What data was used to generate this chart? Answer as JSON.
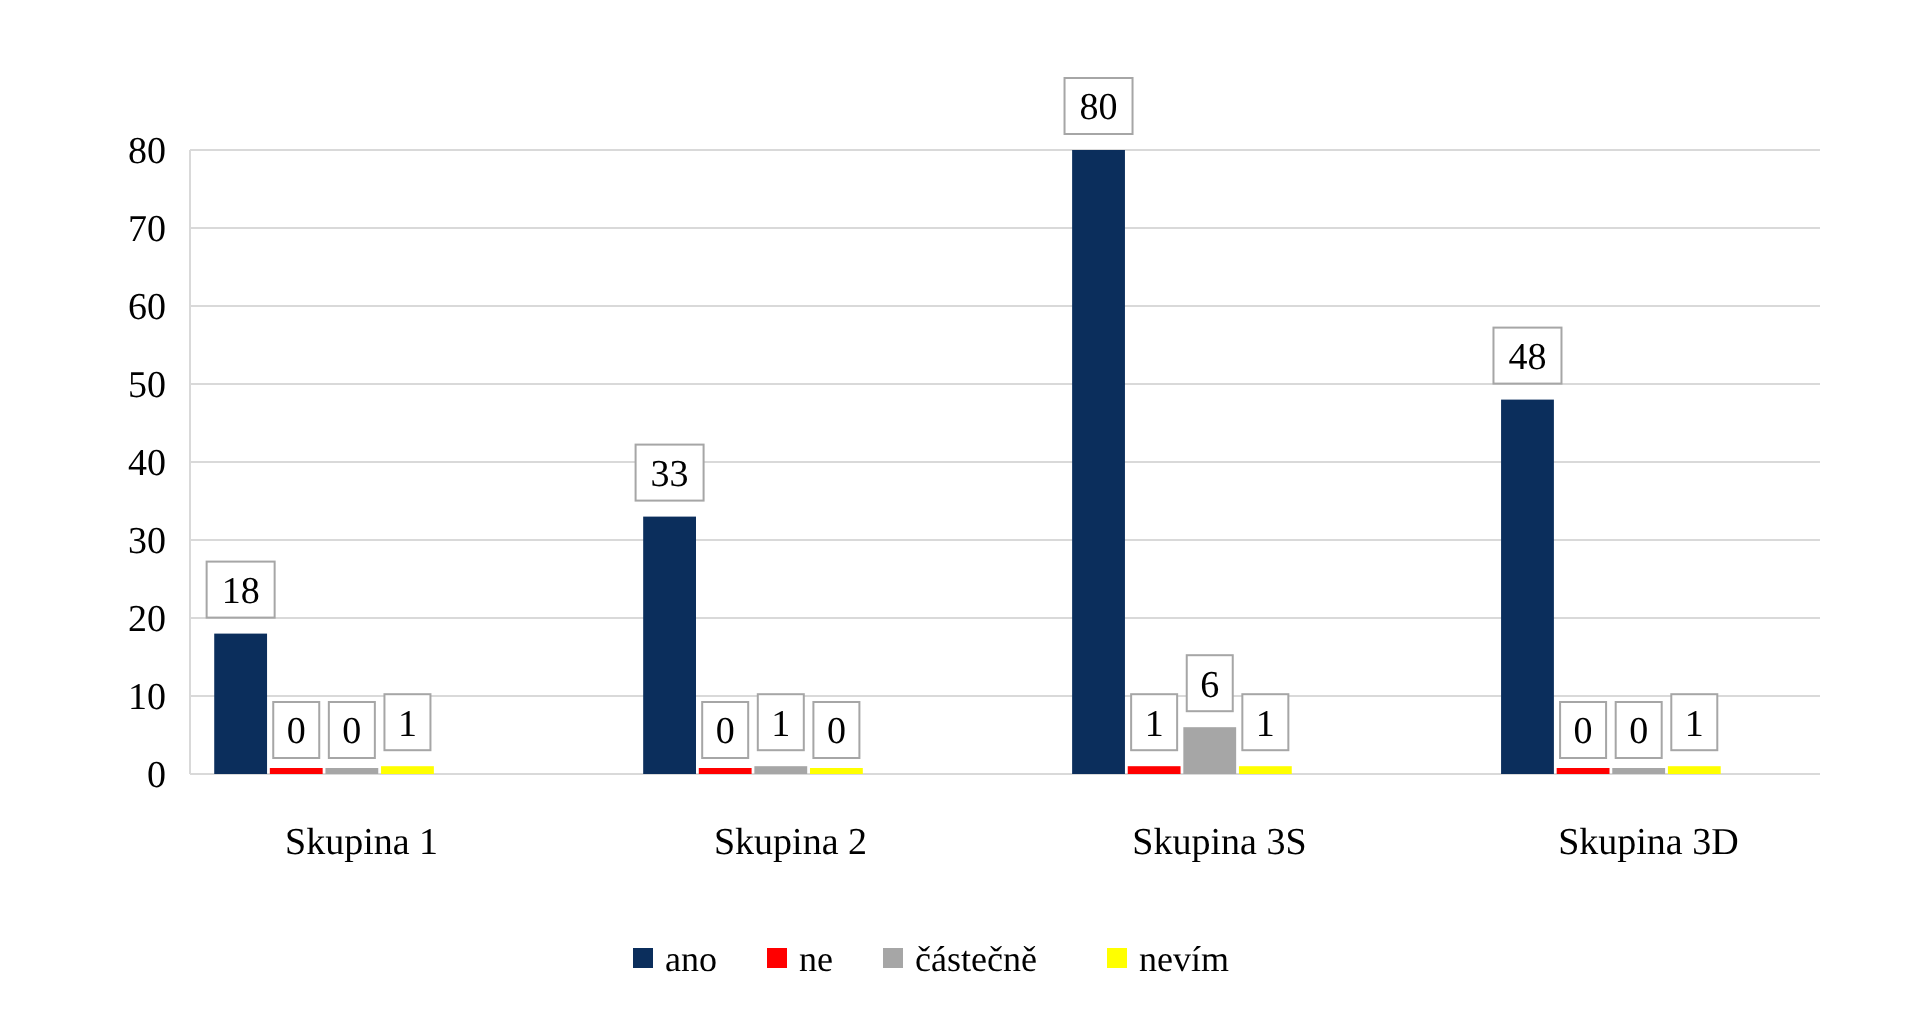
{
  "chart_data": {
    "type": "bar",
    "categories": [
      "Skupina 1",
      "Skupina 2",
      "Skupina 3S",
      "Skupina 3D"
    ],
    "series": [
      {
        "name": "ano",
        "color": "#0b2e5c",
        "values": [
          18,
          33,
          80,
          48
        ]
      },
      {
        "name": "ne",
        "color": "#ff0000",
        "values": [
          0,
          0,
          1,
          0
        ]
      },
      {
        "name": "částečně",
        "color": "#a6a6a6",
        "values": [
          0,
          1,
          6,
          0
        ]
      },
      {
        "name": "nevím",
        "color": "#ffff00",
        "values": [
          1,
          0,
          1,
          1
        ]
      }
    ],
    "ylim": [
      0,
      80
    ],
    "yticks": [
      0,
      10,
      20,
      30,
      40,
      50,
      60,
      70,
      80
    ],
    "grid": "y",
    "legend": "bottom",
    "data_labels": true
  }
}
